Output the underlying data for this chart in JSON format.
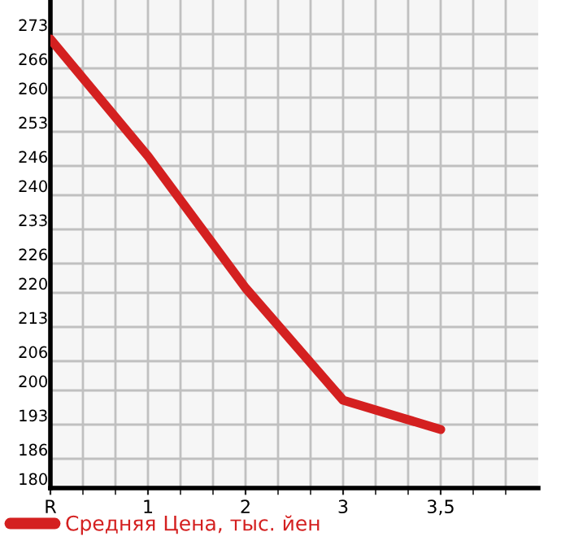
{
  "chart_data": {
    "type": "line",
    "categories": [
      "R",
      "1",
      "2",
      "3",
      "3,5"
    ],
    "series": [
      {
        "name": "Средняя Цена, тыс. йен",
        "color": "#d42020",
        "values": [
          272,
          248,
          221,
          198,
          192
        ]
      }
    ],
    "ylim": [
      180,
      280
    ],
    "yticks": [
      180,
      186,
      193,
      200,
      206,
      213,
      220,
      226,
      233,
      240,
      246,
      253,
      260,
      266,
      273
    ],
    "grid": true,
    "legend": "bottom left",
    "marker": "none",
    "line_style": "solid"
  }
}
